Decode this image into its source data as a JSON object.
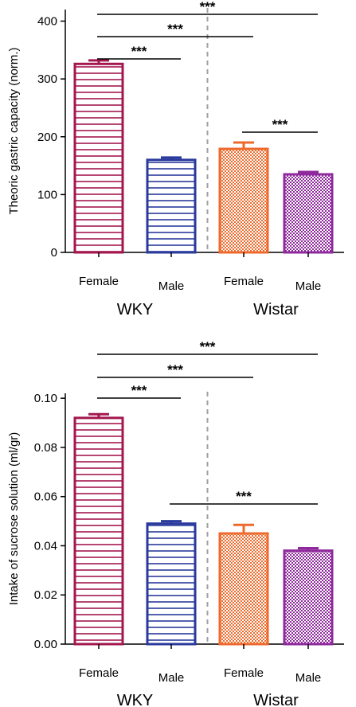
{
  "chart_data": [
    {
      "type": "bar",
      "ylabel": "Theoric gastric capacity (norm.)",
      "categories": [
        "Female",
        "Male",
        "Female",
        "Male"
      ],
      "groups": [
        {
          "name": "WKY",
          "indices": [
            0,
            1
          ]
        },
        {
          "name": "Wistar",
          "indices": [
            2,
            3
          ]
        }
      ],
      "values": [
        326,
        160,
        179,
        135
      ],
      "errors": [
        6,
        4,
        11,
        4
      ],
      "ylim": [
        0,
        420
      ],
      "yticks": [
        "0",
        "100",
        "200",
        "300",
        "400"
      ],
      "significance": [
        {
          "from": 0,
          "to": 3,
          "label": "***"
        },
        {
          "from": 0,
          "to": 2,
          "label": "***"
        },
        {
          "from": 0,
          "to": 1,
          "label": "***"
        },
        {
          "from": 2,
          "to": 3,
          "label": "***"
        }
      ],
      "bar_colors": [
        "#a3174e",
        "#2a3a9c",
        "#ee6a2c",
        "#8f2a9c"
      ],
      "bar_patterns": [
        "hlines",
        "hlines",
        "checker",
        "checker"
      ],
      "divider": "dashed-gray-between-groups"
    },
    {
      "type": "bar",
      "ylabel": "Intake of sucrose solution (ml/gr)",
      "categories": [
        "Female",
        "Male",
        "Female",
        "Male"
      ],
      "groups": [
        {
          "name": "WKY",
          "indices": [
            0,
            1
          ]
        },
        {
          "name": "Wistar",
          "indices": [
            2,
            3
          ]
        }
      ],
      "values": [
        0.092,
        0.049,
        0.045,
        0.038
      ],
      "errors": [
        0.0015,
        0.001,
        0.0035,
        0.001
      ],
      "ylim": [
        0,
        0.102
      ],
      "yticks": [
        "0.00",
        "0.02",
        "0.04",
        "0.06",
        "0.08",
        "0.10"
      ],
      "significance": [
        {
          "from": 0,
          "to": 3,
          "label": "***"
        },
        {
          "from": 0,
          "to": 2,
          "label": "***"
        },
        {
          "from": 0,
          "to": 1,
          "label": "***"
        },
        {
          "from": 1,
          "to": 3,
          "label": "***"
        }
      ],
      "bar_colors": [
        "#a3174e",
        "#2a3a9c",
        "#ee6a2c",
        "#8f2a9c"
      ],
      "bar_patterns": [
        "hlines",
        "hlines",
        "checker",
        "checker"
      ],
      "divider": "dashed-gray-between-groups"
    }
  ]
}
